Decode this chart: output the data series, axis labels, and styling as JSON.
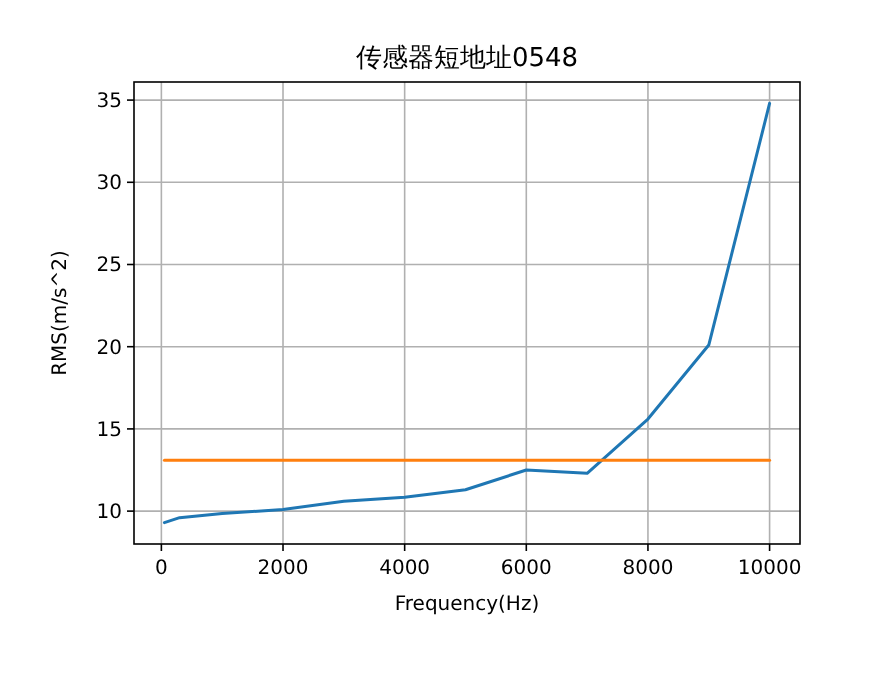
{
  "chart_data": {
    "type": "line",
    "title": "传感器短地址0548",
    "xlabel": "Frequency(Hz)",
    "ylabel": "RMS(m/s^2)",
    "series": [
      {
        "x": [
          50,
          300,
          1000,
          2000,
          3000,
          4000,
          5000,
          6000,
          7000,
          8000,
          9000,
          10000
        ],
        "values": [
          9.3,
          9.6,
          9.85,
          10.1,
          10.6,
          10.85,
          11.3,
          12.5,
          12.3,
          15.6,
          20.1,
          34.8
        ],
        "color": "#1f77b4"
      },
      {
        "x": [
          50,
          10000
        ],
        "values": [
          13.1,
          13.1
        ],
        "color": "#ff7f0e"
      }
    ],
    "xlim": [
      -450,
      10500
    ],
    "ylim": [
      8.0,
      36.1
    ],
    "xticks": [
      0,
      2000,
      4000,
      6000,
      8000,
      10000
    ],
    "yticks": [
      10,
      15,
      20,
      25,
      30,
      35
    ],
    "grid": true
  }
}
